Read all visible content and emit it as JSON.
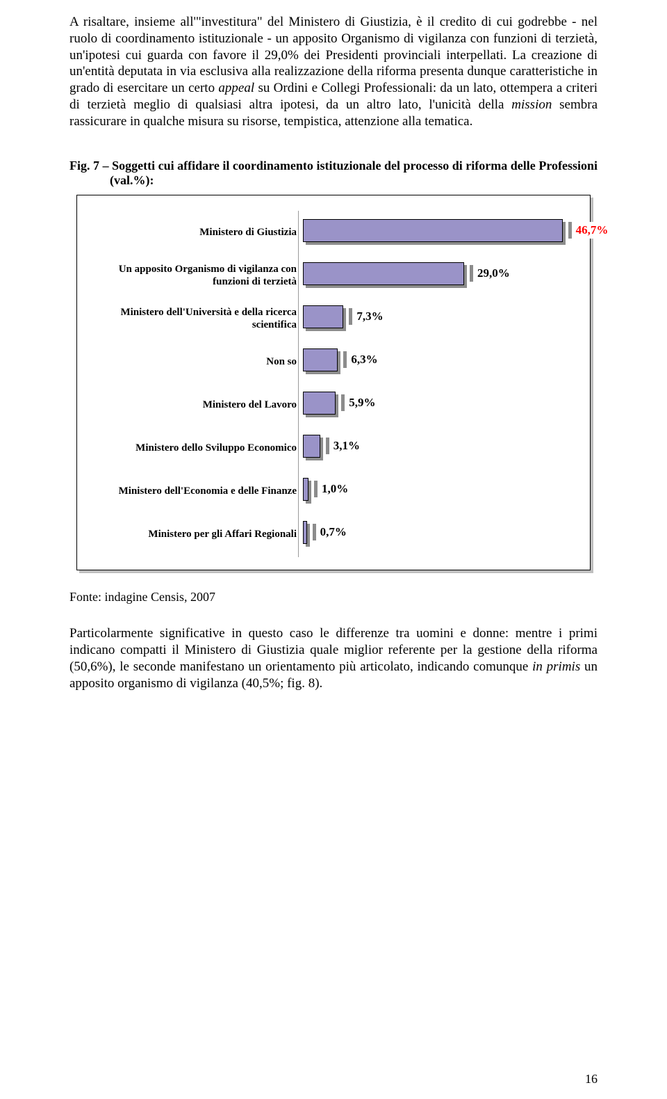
{
  "para1_parts": [
    {
      "t": "A risaltare, insieme all'\"investitura\" del Ministero di Giustizia, è il credito di cui godrebbe - nel ruolo di coordinamento istituzionale - un apposito Organismo di vigilanza con funzioni di terzietà, un'ipotesi cui guarda con favore il 29,0% dei Presidenti provinciali interpellati. La creazione di un'entità deputata in via esclusiva alla realizzazione della riforma presenta dunque caratteristiche in grado di esercitare un certo ",
      "i": false
    },
    {
      "t": "appeal",
      "i": true
    },
    {
      "t": " su Ordini e Collegi Professionali: da un lato, ottempera a criteri di terzietà meglio di qualsiasi altra ipotesi, da un altro lato, l'unicità della ",
      "i": false
    },
    {
      "t": "mission",
      "i": true
    },
    {
      "t": " sembra rassicurare in qualche misura su risorse, tempistica, attenzione alla tematica.",
      "i": false
    }
  ],
  "fig_caption": "Fig. 7 – Soggetti cui affidare il coordinamento istituzionale del processo di riforma delle Professioni (val.%):",
  "chart": {
    "max": 50,
    "bar_color": "#9a93c8",
    "first_value_color": "#ff0000",
    "value_color": "#000000",
    "items": [
      {
        "label": "Ministero di Giustizia",
        "value": 46.7,
        "vtext": "46,7%",
        "first": true
      },
      {
        "label": "Un apposito Organismo di vigilanza con funzioni di terzietà",
        "value": 29.0,
        "vtext": "29,0%"
      },
      {
        "label": "Ministero dell'Università e della ricerca scientifica",
        "value": 7.3,
        "vtext": "7,3%"
      },
      {
        "label": "Non so",
        "value": 6.3,
        "vtext": "6,3%"
      },
      {
        "label": "Ministero del Lavoro",
        "value": 5.9,
        "vtext": "5,9%"
      },
      {
        "label": "Ministero dello Sviluppo Economico",
        "value": 3.1,
        "vtext": "3,1%"
      },
      {
        "label": "Ministero dell'Economia e delle Finanze",
        "value": 1.0,
        "vtext": "1,0%"
      },
      {
        "label": "Ministero per gli Affari Regionali",
        "value": 0.7,
        "vtext": "0,7%"
      }
    ]
  },
  "source": "Fonte: indagine Censis, 2007",
  "para2_parts": [
    {
      "t": "Particolarmente significative in questo caso le differenze tra uomini e donne: mentre i primi indicano compatti il Ministero di Giustizia quale miglior referente per la gestione della riforma (50,6%), le seconde manifestano un orientamento più articolato, indicando comunque ",
      "i": false
    },
    {
      "t": "in primis",
      "i": true
    },
    {
      "t": " un apposito organismo di vigilanza (40,5%; fig. 8).",
      "i": false
    }
  ],
  "page_number": "16"
}
